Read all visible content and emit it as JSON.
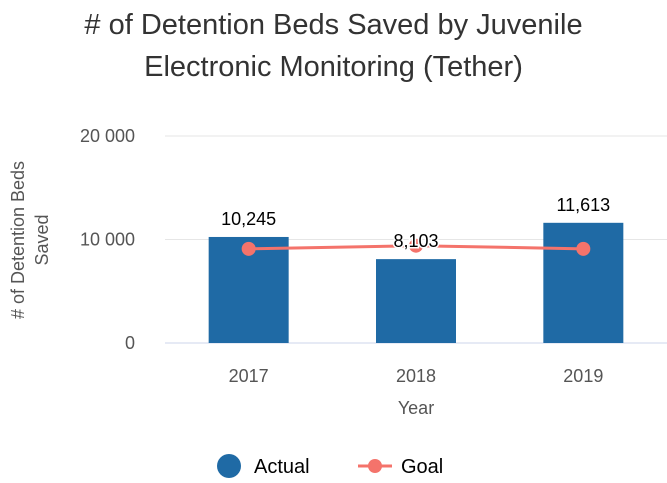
{
  "chart_data": {
    "type": "bar",
    "title_lines": [
      "# of Detention Beds Saved by Juvenile",
      "Electronic Monitoring (Tether)"
    ],
    "xlabel": "Year",
    "ylabel_lines": [
      "# of Detention Beds",
      "Saved"
    ],
    "categories": [
      "2017",
      "2018",
      "2019"
    ],
    "y_ticks": [
      0,
      10000,
      20000
    ],
    "y_tick_labels": [
      "0",
      "10 000",
      "20 000"
    ],
    "ylim": [
      0,
      20000
    ],
    "grid": true,
    "legend_position": "bottom",
    "series": [
      {
        "name": "Actual",
        "type": "bar",
        "values": [
          10245,
          8103,
          11613
        ],
        "data_labels": [
          "10,245",
          "8,103",
          "11,613"
        ],
        "color": "#1f6aa5"
      },
      {
        "name": "Goal",
        "type": "line",
        "values": [
          9100,
          9400,
          9100
        ],
        "color": "#f4736b"
      }
    ]
  }
}
